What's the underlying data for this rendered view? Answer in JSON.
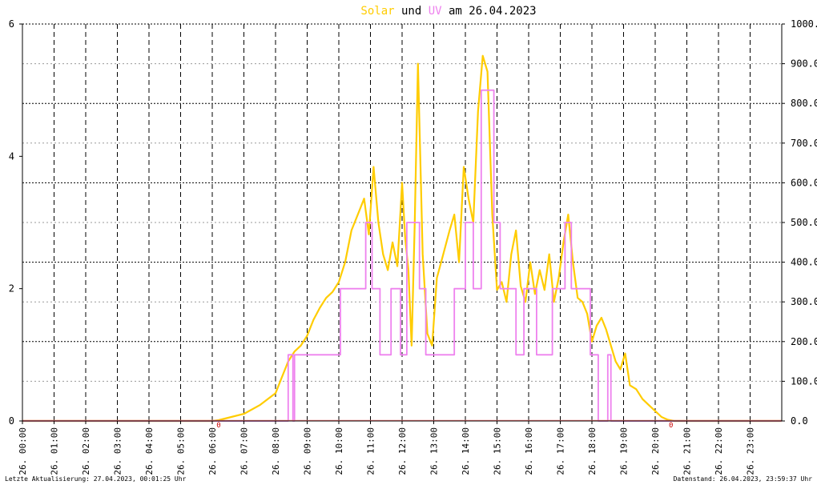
{
  "title": {
    "part1": "Solar",
    "part2": " und ",
    "part3": "UV",
    "part4": " am 26.04.2023",
    "color_solar": "#ffcc00",
    "color_uv": "#ee82ee",
    "color_text": "#000000"
  },
  "footer": {
    "left": "Letzte Aktualisierung: 27.04.2023, 00:01:25 Uhr",
    "right": "Datenstand: 26.04.2023, 23:59:37 Uhr"
  },
  "chart_data": {
    "type": "line",
    "grid": true,
    "xlim": [
      0,
      24
    ],
    "x_ticks": [
      "26. 00:00",
      "26. 01:00",
      "26. 02:00",
      "26. 03:00",
      "26. 04:00",
      "26. 05:00",
      "26. 06:00",
      "26. 07:00",
      "26. 08:00",
      "26. 09:00",
      "26. 10:00",
      "26. 11:00",
      "26. 12:00",
      "26. 13:00",
      "26. 14:00",
      "26. 15:00",
      "26. 16:00",
      "26. 17:00",
      "26. 18:00",
      "26. 19:00",
      "26. 20:00",
      "26. 21:00",
      "26. 22:00",
      "26. 23:00"
    ],
    "y_left": {
      "ylim": [
        0,
        6
      ],
      "ticks": [
        "0",
        "2",
        "4",
        "6"
      ]
    },
    "y_right": {
      "ylim": [
        0,
        1000
      ],
      "ticks": [
        "0.0",
        "100.0",
        "200.0",
        "300.0",
        "400.0",
        "500.0",
        "600.0",
        "700.0",
        "800.0",
        "900.0",
        "1000.0"
      ]
    },
    "sun_markers": {
      "sunrise_hour": 6.2,
      "sunset_hour": 20.5,
      "label": "0"
    },
    "series": [
      {
        "name": "Solar",
        "axis": "right",
        "color": "#ffcc00",
        "x": [
          0,
          6.0,
          6.2,
          6.5,
          7.0,
          7.5,
          8.0,
          8.2,
          8.4,
          8.6,
          8.8,
          9.0,
          9.2,
          9.4,
          9.6,
          9.8,
          10.0,
          10.2,
          10.4,
          10.6,
          10.8,
          10.95,
          11.1,
          11.25,
          11.4,
          11.55,
          11.7,
          11.85,
          12.0,
          12.1,
          12.2,
          12.3,
          12.4,
          12.5,
          12.65,
          12.8,
          12.95,
          13.1,
          13.3,
          13.5,
          13.65,
          13.8,
          13.95,
          14.1,
          14.25,
          14.4,
          14.55,
          14.7,
          14.85,
          15.0,
          15.15,
          15.3,
          15.45,
          15.6,
          15.75,
          15.9,
          16.05,
          16.2,
          16.35,
          16.5,
          16.65,
          16.8,
          16.95,
          17.1,
          17.25,
          17.4,
          17.55,
          17.7,
          17.85,
          18.0,
          18.15,
          18.3,
          18.45,
          18.6,
          18.75,
          18.9,
          19.05,
          19.2,
          19.4,
          19.6,
          19.8,
          20.0,
          20.2,
          20.4,
          20.6,
          21,
          24
        ],
        "y": [
          0,
          0,
          2,
          8,
          18,
          40,
          70,
          110,
          150,
          175,
          190,
          215,
          255,
          285,
          310,
          325,
          350,
          400,
          480,
          520,
          560,
          470,
          640,
          500,
          420,
          380,
          450,
          390,
          600,
          460,
          380,
          190,
          500,
          900,
          420,
          220,
          190,
          360,
          420,
          480,
          520,
          400,
          640,
          560,
          500,
          780,
          920,
          880,
          520,
          330,
          350,
          300,
          420,
          480,
          340,
          300,
          400,
          320,
          380,
          330,
          420,
          300,
          360,
          450,
          520,
          400,
          310,
          300,
          270,
          200,
          240,
          260,
          230,
          190,
          150,
          130,
          170,
          90,
          80,
          55,
          40,
          25,
          10,
          3,
          0,
          0,
          0
        ]
      },
      {
        "name": "UV",
        "axis": "left",
        "color": "#ee82ee",
        "x": [
          0,
          8.4,
          8.4,
          8.55,
          8.55,
          8.6,
          8.6,
          8.8,
          8.8,
          9.2,
          9.2,
          9.55,
          9.55,
          9.8,
          9.8,
          10.05,
          10.05,
          10.35,
          10.35,
          10.85,
          10.85,
          11.05,
          11.05,
          11.3,
          11.3,
          11.65,
          11.65,
          11.95,
          11.95,
          12.15,
          12.15,
          12.55,
          12.55,
          12.75,
          12.75,
          13.65,
          13.65,
          14.0,
          14.0,
          14.25,
          14.25,
          14.5,
          14.5,
          14.9,
          14.9,
          15.1,
          15.1,
          15.6,
          15.6,
          15.85,
          15.85,
          16.25,
          16.25,
          16.75,
          16.75,
          17.15,
          17.15,
          17.35,
          17.35,
          17.95,
          17.95,
          18.2,
          18.2,
          18.5,
          18.5,
          18.6,
          18.6,
          18.65,
          18.65,
          24
        ],
        "y": [
          0,
          0,
          1,
          1,
          0,
          0,
          1,
          1,
          1,
          1,
          1,
          1,
          1,
          1,
          1,
          1,
          2,
          2,
          2,
          2,
          3,
          3,
          2,
          2,
          1,
          1,
          2,
          2,
          1,
          1,
          3,
          3,
          2,
          2,
          1,
          1,
          2,
          2,
          3,
          3,
          2,
          2,
          5,
          5,
          3,
          3,
          2,
          2,
          1,
          1,
          2,
          2,
          1,
          1,
          2,
          2,
          3,
          3,
          2,
          2,
          1,
          1,
          0,
          0,
          1,
          1,
          0,
          0,
          0,
          0
        ]
      }
    ]
  }
}
